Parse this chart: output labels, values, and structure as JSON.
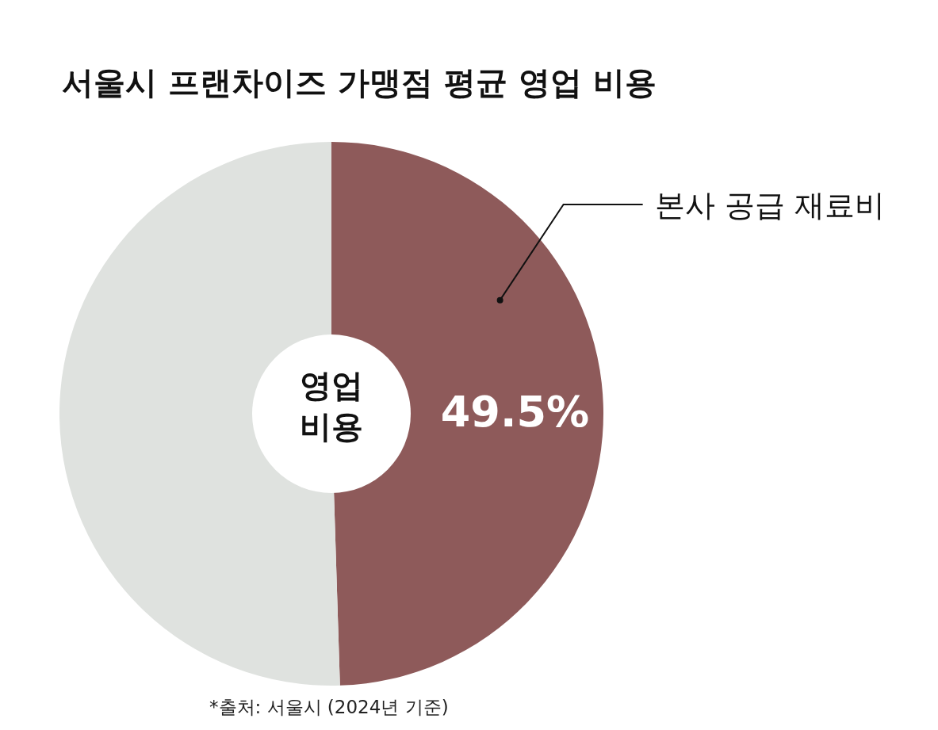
{
  "chart_data": {
    "type": "donut",
    "title": "서울시 프랜차이즈 가맹점 평균 영업 비용",
    "categories": [
      "본사 공급 재료비",
      null
    ],
    "values": [
      49.5,
      50.5
    ],
    "colors": [
      "#8e5a5a",
      "#dfe2df"
    ],
    "value_labels": [
      "49.5%",
      null
    ],
    "annotations": [
      "영업 비용",
      "*출처: 서울시 (2024년 기준)"
    ]
  }
}
